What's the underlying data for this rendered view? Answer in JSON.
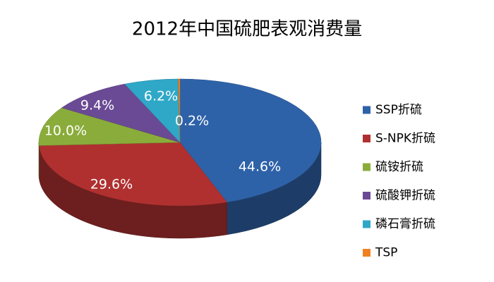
{
  "chart_data": {
    "type": "pie",
    "title": "2012年中国硫肥表观消费量",
    "categories": [
      "SSP折硫",
      "S-NPK折硫",
      "硫铵折硫",
      "硫酸钾折硫",
      "磷石膏折硫",
      "TSP"
    ],
    "values": [
      44.6,
      29.6,
      10.0,
      9.4,
      6.2,
      0.2
    ],
    "value_labels": [
      "44.6%",
      "29.6%",
      "10.0%",
      "9.4%",
      "6.2%",
      "0.2%"
    ],
    "colors": [
      "#2e62a8",
      "#b03030",
      "#8aac3a",
      "#6a4a94",
      "#2fa8c8",
      "#f08020"
    ],
    "legend": "right"
  }
}
